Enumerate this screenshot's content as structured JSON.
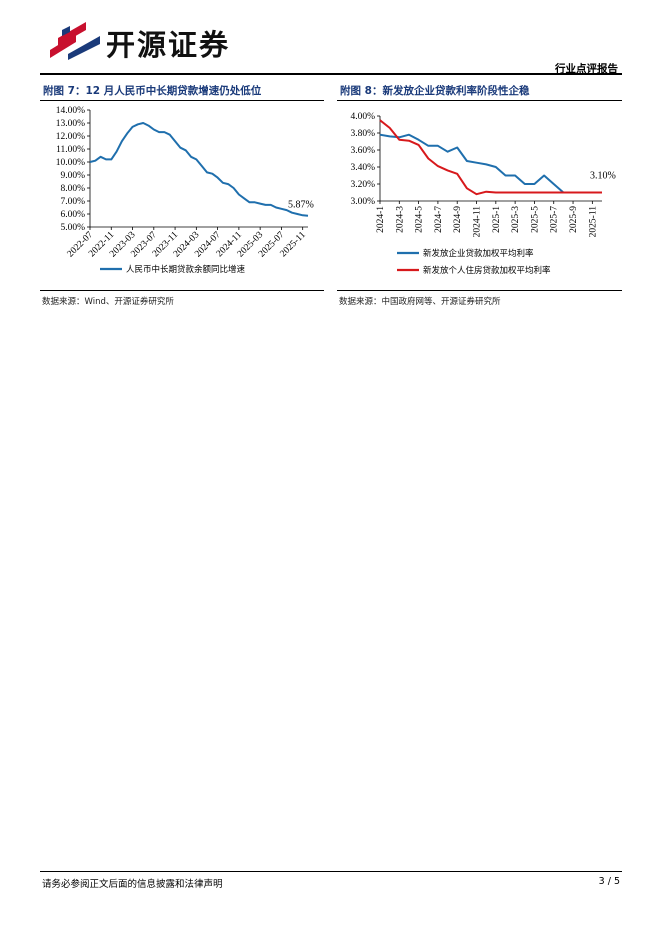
{
  "header": {
    "brand": "开源证券",
    "report_type": "行业点评报告"
  },
  "figures": [
    {
      "title": "附图 7：12 月人民币中长期贷款增速仍处低位",
      "source": "数据来源：Wind、开源证券研究所"
    },
    {
      "title": "附图 8：新发放企业贷款利率阶段性企稳",
      "source": "数据来源：中国政府网等、开源证券研究所"
    }
  ],
  "chart_data": [
    {
      "type": "line",
      "x": [
        "2022-07",
        "2022-08",
        "2022-09",
        "2022-10",
        "2022-11",
        "2022-12",
        "2023-01",
        "2023-02",
        "2023-03",
        "2023-04",
        "2023-05",
        "2023-06",
        "2023-07",
        "2023-08",
        "2023-09",
        "2023-10",
        "2023-11",
        "2023-12",
        "2024-01",
        "2024-02",
        "2024-03",
        "2024-04",
        "2024-05",
        "2024-06",
        "2024-07",
        "2024-08",
        "2024-09",
        "2024-10",
        "2024-11",
        "2024-12",
        "2025-01",
        "2025-02",
        "2025-03",
        "2025-04",
        "2025-05",
        "2025-06",
        "2025-07",
        "2025-08",
        "2025-09",
        "2025-10",
        "2025-11",
        "2025-12"
      ],
      "x_ticks": [
        "2022-07",
        "2022-11",
        "2023-03",
        "2023-07",
        "2023-11",
        "2024-03",
        "2024-07",
        "2024-11",
        "2025-03",
        "2025-07",
        "2025-11"
      ],
      "series": [
        {
          "name": "人民币中长期贷款余额同比增速",
          "color": "#1f6fad",
          "values": [
            10.0,
            10.1,
            10.4,
            10.2,
            10.2,
            10.8,
            11.6,
            12.2,
            12.7,
            12.9,
            13.0,
            12.8,
            12.5,
            12.3,
            12.3,
            12.1,
            11.6,
            11.1,
            10.9,
            10.4,
            10.2,
            9.7,
            9.2,
            9.1,
            8.8,
            8.4,
            8.3,
            8.0,
            7.5,
            7.2,
            6.9,
            6.9,
            6.8,
            6.7,
            6.7,
            6.5,
            6.4,
            6.3,
            6.1,
            6.0,
            5.9,
            5.87
          ]
        }
      ],
      "ylim": [
        5.0,
        14.0
      ],
      "y_ticks": [
        "5.00%",
        "6.00%",
        "7.00%",
        "8.00%",
        "9.00%",
        "10.00%",
        "11.00%",
        "12.00%",
        "13.00%",
        "14.00%"
      ],
      "annotation": "5.87%",
      "legend": "bottom",
      "grid": false
    },
    {
      "type": "line",
      "x": [
        "2024-1",
        "2024-2",
        "2024-3",
        "2024-4",
        "2024-5",
        "2024-6",
        "2024-7",
        "2024-8",
        "2024-9",
        "2024-10",
        "2024-11",
        "2024-12",
        "2025-1",
        "2025-2",
        "2025-3",
        "2025-4",
        "2025-5",
        "2025-6",
        "2025-7",
        "2025-8",
        "2025-9",
        "2025-10",
        "2025-11",
        "2025-12"
      ],
      "x_ticks": [
        "2024-1",
        "2024-3",
        "2024-5",
        "2024-7",
        "2024-9",
        "2024-11",
        "2025-1",
        "2025-3",
        "2025-5",
        "2025-7",
        "2025-9",
        "2025-11"
      ],
      "series": [
        {
          "name": "新发放企业贷款加权平均利率",
          "color": "#1f6fad",
          "values": [
            3.78,
            3.76,
            3.75,
            3.78,
            3.72,
            3.65,
            3.65,
            3.58,
            3.63,
            3.47,
            3.45,
            3.43,
            3.4,
            3.3,
            3.3,
            3.2,
            3.2,
            3.3,
            3.2,
            3.1,
            3.1,
            3.1,
            3.1,
            3.1
          ]
        },
        {
          "name": "新发放个人住房贷款加权平均利率",
          "color": "#d7191c",
          "values": [
            3.95,
            3.86,
            3.72,
            3.71,
            3.66,
            3.5,
            3.41,
            3.36,
            3.32,
            3.15,
            3.08,
            3.11,
            3.1,
            3.1,
            3.1,
            3.1,
            3.1,
            3.1,
            3.1,
            3.1,
            3.1,
            3.1,
            3.1,
            3.1
          ]
        }
      ],
      "ylim": [
        3.0,
        4.0
      ],
      "y_ticks": [
        "3.00%",
        "3.20%",
        "3.40%",
        "3.60%",
        "3.80%",
        "4.00%"
      ],
      "annotation": "3.10%",
      "legend": "bottom",
      "grid": false
    }
  ],
  "footer": {
    "disclaimer": "请务必参阅正文后面的信息披露和法律声明",
    "page": "3 / 5"
  }
}
